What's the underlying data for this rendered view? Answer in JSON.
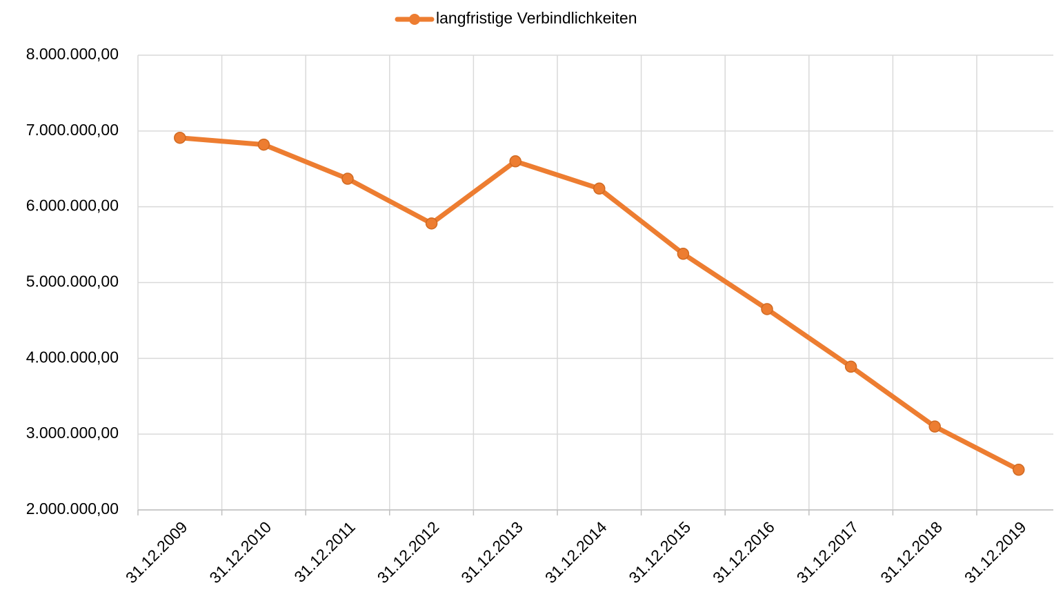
{
  "chart_data": {
    "type": "line",
    "categories": [
      "31.12.2009",
      "31.12.2010",
      "31.12.2011",
      "31.12.2012",
      "31.12.2013",
      "31.12.2014",
      "31.12.2015",
      "31.12.2016",
      "31.12.2017",
      "31.12.2018",
      "31.12.2019"
    ],
    "series": [
      {
        "name": "langfristige Verbindlichkeiten",
        "color": "#ed7d31",
        "values": [
          6910000,
          6820000,
          6370000,
          5780000,
          6600000,
          6240000,
          5380000,
          4650000,
          3890000,
          3100000,
          2530000
        ]
      }
    ],
    "ylim": [
      2000000,
      8000000
    ],
    "yticks": [
      {
        "value": 2000000,
        "label": "2.000.000,00"
      },
      {
        "value": 3000000,
        "label": "3.000.000,00"
      },
      {
        "value": 4000000,
        "label": "4.000.000,00"
      },
      {
        "value": 5000000,
        "label": "5.000.000,00"
      },
      {
        "value": 6000000,
        "label": "6.000.000,00"
      },
      {
        "value": 7000000,
        "label": "7.000.000,00"
      },
      {
        "value": 8000000,
        "label": "8.000.000,00"
      }
    ],
    "grid": true,
    "legend": "top"
  }
}
